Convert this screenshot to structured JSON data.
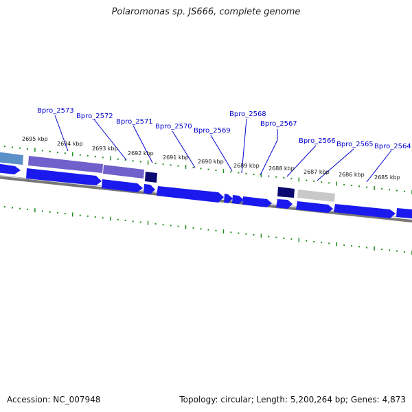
{
  "title": "Polaromonas sp. JS666, complete genome",
  "footer": {
    "accession": "Accession: NC_007948",
    "summary": "Topology: circular; Length: 5,200,264 bp; Genes: 4,873"
  },
  "ticks": [
    "2695 kbp",
    "2694 kbp",
    "2693 kbp",
    "2692 kbp",
    "2691 kbp",
    "2690 kbp",
    "2689 kbp",
    "2688 kbp",
    "2687 kbp",
    "2686 kbp",
    "2685 kbp"
  ],
  "genes": [
    "Bpro_2573",
    "Bpro_2572",
    "Bpro_2571",
    "Bpro_2570",
    "Bpro_2569",
    "Bpro_2568",
    "Bpro_2567",
    "Bpro_2566",
    "Bpro_2565",
    "Bpro_2564"
  ],
  "colors": {
    "forward": "#1a1aee",
    "reverse_purple": "#7060cc",
    "reverse_dark": "#0a0a70",
    "reverse_light": "#5a8fc8",
    "pseudo": "#c8c8c8",
    "backbone": "#808080",
    "gc_ticks": "#1e8c1e",
    "label": "#0000cc"
  }
}
